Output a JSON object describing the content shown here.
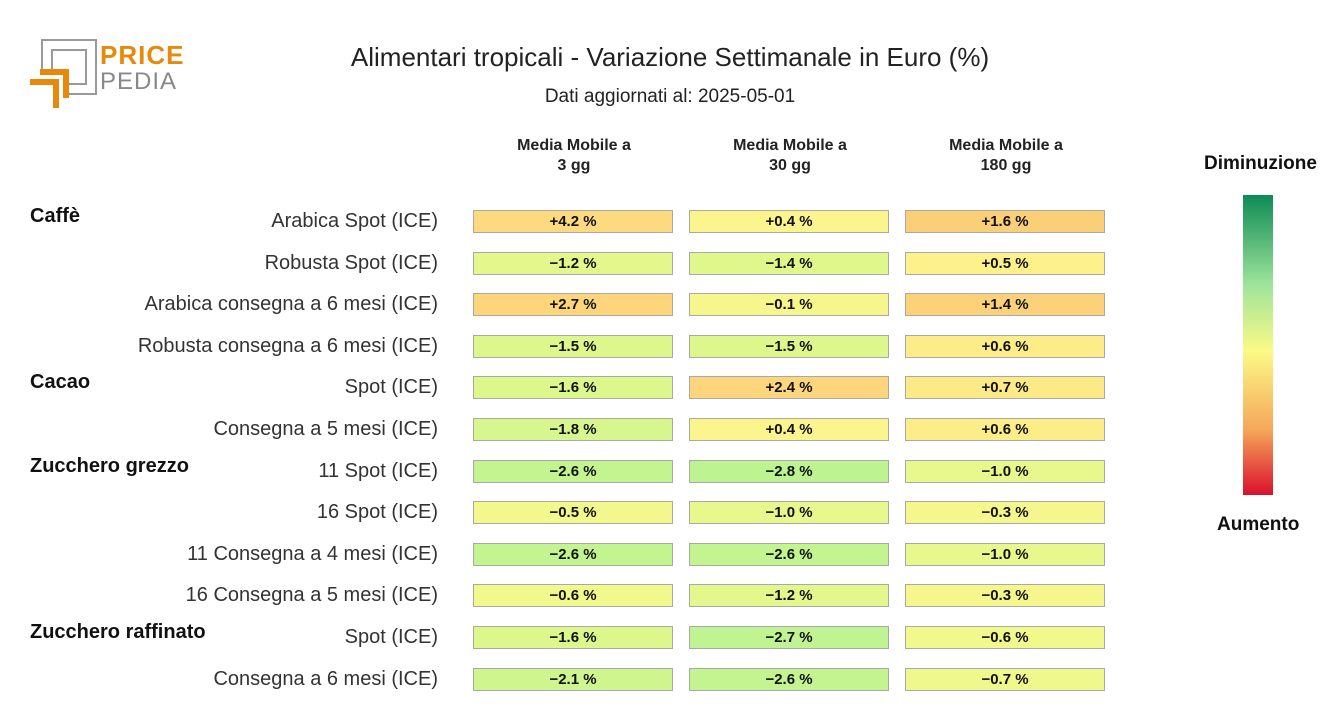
{
  "logo": {
    "word1": "PRICE",
    "word2": "PEDIA"
  },
  "chart_data": {
    "type": "table",
    "title": "Alimentari tropicali - Variazione Settimanale in Euro (%)",
    "subtitle": "Dati aggiornati al: 2025-05-01",
    "columns": [
      "Media Mobile a\n3 gg",
      "Media Mobile a\n30 gg",
      "Media Mobile a\n180 gg"
    ],
    "legend": {
      "top": "Diminuzione",
      "bottom": "Aumento",
      "colors": [
        "#0e8a55",
        "#9ee49a",
        "#fbfa86",
        "#f6a85b",
        "#d8102c"
      ]
    },
    "groups": [
      {
        "name": "Caffè",
        "rows": [
          {
            "label": "Arabica Spot (ICE)",
            "values": [
              4.2,
              0.4,
              1.6
            ]
          },
          {
            "label": "Robusta Spot (ICE)",
            "values": [
              -1.2,
              -1.4,
              0.5
            ]
          },
          {
            "label": "Arabica consegna a 6 mesi (ICE)",
            "values": [
              2.7,
              -0.1,
              1.4
            ]
          },
          {
            "label": "Robusta consegna a 6 mesi (ICE)",
            "values": [
              -1.5,
              -1.5,
              0.6
            ]
          }
        ]
      },
      {
        "name": "Cacao",
        "rows": [
          {
            "label": "Spot (ICE)",
            "values": [
              -1.6,
              2.4,
              0.7
            ]
          },
          {
            "label": "Consegna a 5 mesi (ICE)",
            "values": [
              -1.8,
              0.4,
              0.6
            ]
          }
        ]
      },
      {
        "name": "Zucchero grezzo",
        "rows": [
          {
            "label": "11 Spot (ICE)",
            "values": [
              -2.6,
              -2.8,
              -1.0
            ]
          },
          {
            "label": "16 Spot (ICE)",
            "values": [
              -0.5,
              -1.0,
              -0.3
            ]
          },
          {
            "label": "11 Consegna a 4 mesi (ICE)",
            "values": [
              -2.6,
              -2.6,
              -1.0
            ]
          },
          {
            "label": "16 Consegna a 5 mesi (ICE)",
            "values": [
              -0.6,
              -1.2,
              -0.3
            ]
          }
        ]
      },
      {
        "name": "Zucchero raffinato",
        "rows": [
          {
            "label": "Spot (ICE)",
            "values": [
              -1.6,
              -2.7,
              -0.6
            ]
          },
          {
            "label": "Consegna a 6 mesi (ICE)",
            "values": [
              -2.1,
              -2.6,
              -0.7
            ]
          }
        ]
      }
    ]
  }
}
